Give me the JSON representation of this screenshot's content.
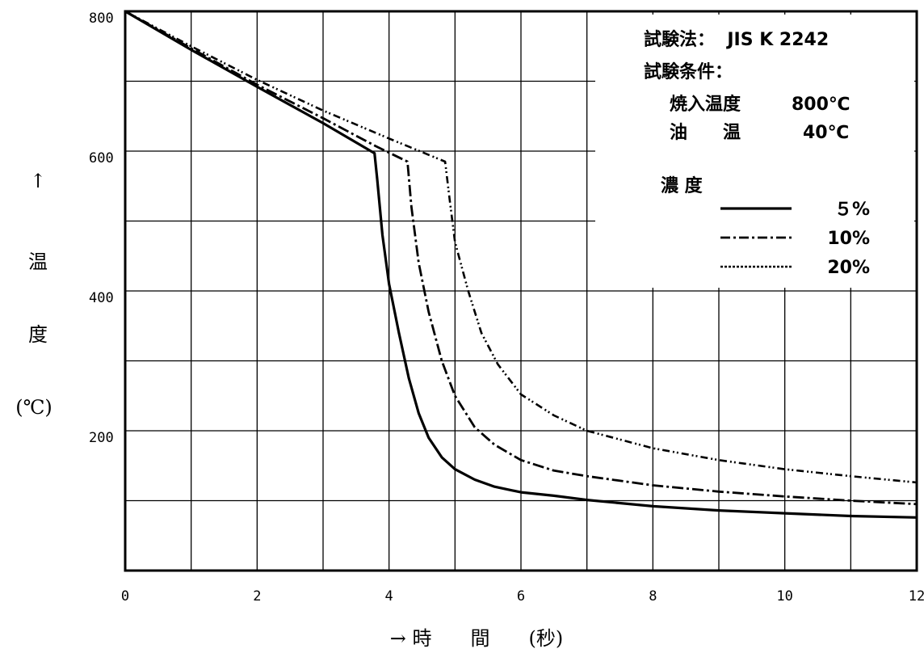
{
  "chart_data": {
    "type": "line",
    "xlabel": "→ 時　　間　　(秒)",
    "ylabel_parts": [
      "↑",
      "温",
      "度",
      "(℃)"
    ],
    "xlim": [
      0,
      12
    ],
    "ylim": [
      0,
      800
    ],
    "x_ticks": [
      "0",
      "2",
      "4",
      "6",
      "8",
      "10",
      "12"
    ],
    "y_ticks": [
      "200",
      "400",
      "600",
      "800"
    ],
    "grid": true,
    "info": {
      "test_method": "試験法：  JIS K 2242",
      "conditions_title": "試験条件：",
      "quench_label": "焼入温度",
      "quench_value": "800℃",
      "oil_label": "油　　温",
      "oil_value": "40℃",
      "concentration_title": "濃 度"
    },
    "legend_position": "top-right",
    "series": [
      {
        "name": "５%",
        "style": "solid",
        "points": [
          [
            0,
            800
          ],
          [
            1,
            745
          ],
          [
            2,
            692
          ],
          [
            3,
            640
          ],
          [
            3.78,
            597
          ],
          [
            3.82,
            560
          ],
          [
            3.9,
            480
          ],
          [
            4.0,
            410
          ],
          [
            4.15,
            340
          ],
          [
            4.3,
            275
          ],
          [
            4.45,
            225
          ],
          [
            4.6,
            190
          ],
          [
            4.8,
            162
          ],
          [
            5.0,
            145
          ],
          [
            5.3,
            130
          ],
          [
            5.6,
            120
          ],
          [
            6.0,
            112
          ],
          [
            6.5,
            107
          ],
          [
            7,
            101
          ],
          [
            8,
            92
          ],
          [
            9,
            86
          ],
          [
            10,
            82
          ],
          [
            11,
            78
          ],
          [
            12,
            76
          ]
        ]
      },
      {
        "name": "10%",
        "style": "dashdot",
        "points": [
          [
            0,
            800
          ],
          [
            1,
            747
          ],
          [
            2,
            695
          ],
          [
            3,
            647
          ],
          [
            3.8,
            607
          ],
          [
            4.28,
            585
          ],
          [
            4.34,
            520
          ],
          [
            4.45,
            440
          ],
          [
            4.6,
            370
          ],
          [
            4.8,
            300
          ],
          [
            5.0,
            250
          ],
          [
            5.3,
            205
          ],
          [
            5.6,
            180
          ],
          [
            6.0,
            158
          ],
          [
            6.5,
            143
          ],
          [
            7,
            135
          ],
          [
            8,
            122
          ],
          [
            9,
            113
          ],
          [
            10,
            106
          ],
          [
            11,
            100
          ],
          [
            12,
            95
          ]
        ]
      },
      {
        "name": "20%",
        "style": "dashdotdot",
        "points": [
          [
            0,
            800
          ],
          [
            1,
            750
          ],
          [
            2,
            702
          ],
          [
            3,
            658
          ],
          [
            4,
            618
          ],
          [
            4.85,
            585
          ],
          [
            4.92,
            530
          ],
          [
            5.0,
            470
          ],
          [
            5.2,
            400
          ],
          [
            5.4,
            340
          ],
          [
            5.65,
            295
          ],
          [
            6.0,
            252
          ],
          [
            6.5,
            222
          ],
          [
            7,
            200
          ],
          [
            8,
            175
          ],
          [
            9,
            158
          ],
          [
            10,
            145
          ],
          [
            11,
            135
          ],
          [
            12,
            126
          ]
        ]
      }
    ]
  }
}
